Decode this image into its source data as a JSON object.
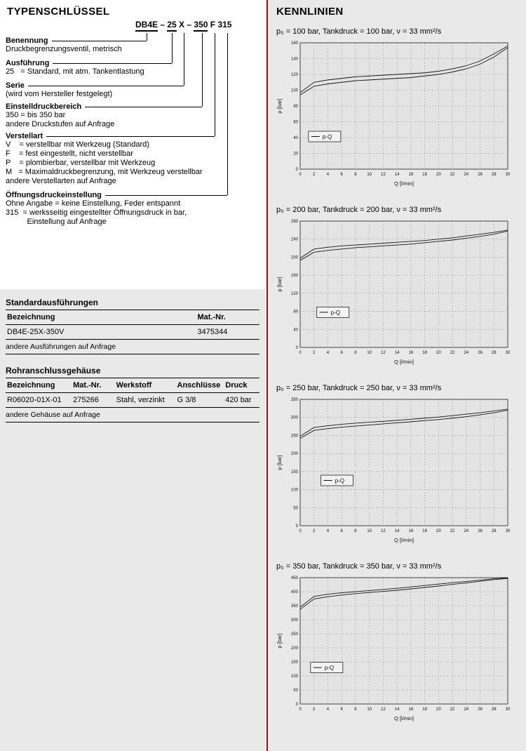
{
  "page": {
    "divider_color": "#8a1717",
    "background": "#e9e9e9"
  },
  "left": {
    "title": "TYPENSCHLÜSSEL",
    "type_key": {
      "code": {
        "tokens": [
          {
            "text": "DB4E",
            "underline": true
          },
          {
            "text": " – ",
            "underline": false
          },
          {
            "text": "25",
            "underline": true
          },
          {
            "text": " X",
            "underline": false
          },
          {
            "text": " – ",
            "underline": false
          },
          {
            "text": "350",
            "underline": true
          },
          {
            "text": " F",
            "underline": false
          },
          {
            "text": " 315",
            "underline": false
          }
        ]
      },
      "sections": [
        {
          "heading": "Benennung",
          "lines": [
            "Druckbegrenzungsventil, metrisch"
          ]
        },
        {
          "heading": "Ausführung",
          "lines": [
            "25   = Standard, mit atm. Tankentlastung"
          ]
        },
        {
          "heading": "Serie",
          "lines": [
            "(wird vom Hersteller festgelegt)"
          ]
        },
        {
          "heading": "Einstelldruckbereich",
          "lines": [
            "350 = bis 350 bar",
            "andere Druckstufen auf Anfrage"
          ]
        },
        {
          "heading": "Verstellart",
          "lines": [
            "V    = verstellbar mit Werkzeug (Standard)",
            "F    = fest eingestellt, nicht verstellbar",
            "P    = plombierbar, verstellbar mit Werkzeug",
            "M   = Maximaldruckbegrenzung, mit Werkzeug verstellbar",
            "andere Verstellarten auf Anfrage"
          ]
        },
        {
          "heading": "Öffnungsdruckeinstellung",
          "lines": [
            "Ohne Angabe = keine Einstellung, Feder entspannt",
            "315  = werksseitig eingestellter Öffnungsdruck in bar,",
            "          Einstellung auf Anfrage"
          ]
        }
      ]
    },
    "tables": [
      {
        "title": "Standardausführungen",
        "headers": [
          "Bezeichnung",
          "Mat.-Nr."
        ],
        "col_widths": [
          "75%",
          "25%"
        ],
        "rows": [
          [
            "DB4E-25X-350V",
            "3475344"
          ]
        ],
        "note": "andere Ausführungen auf Anfrage"
      },
      {
        "title": "Rohranschlussgehäuse",
        "headers": [
          "Bezeichnung",
          "Mat.-Nr.",
          "Werkstoff",
          "Anschlüsse",
          "Druck"
        ],
        "col_widths": [
          "26%",
          "17%",
          "24%",
          "19%",
          "14%"
        ],
        "rows": [
          [
            "R06020-01X-01",
            "275266",
            "Stahl, verzinkt",
            "G 3/8",
            "420 bar"
          ]
        ],
        "note": "andere Gehäuse auf Anfrage"
      }
    ]
  },
  "right": {
    "title": "KENNLINIEN"
  },
  "chart_data": [
    {
      "type": "line",
      "title": "p₀ = 100 bar, Tankdruck = 100 bar, ν = 33 mm²/s",
      "xlabel": "Q [l/min]",
      "ylabel": "p [bar]",
      "xlim": [
        0,
        30
      ],
      "xtick_step": 2,
      "ylim": [
        0,
        160
      ],
      "ytick_step": 20,
      "grid": true,
      "legend": {
        "label": "p-Q",
        "pos": [
          0.04,
          0.7
        ]
      },
      "x": [
        0,
        2,
        4,
        6,
        8,
        10,
        12,
        14,
        16,
        18,
        20,
        22,
        24,
        26,
        28,
        30
      ],
      "series": [
        {
          "name": "p-Q",
          "values": [
            97,
            110,
            113,
            115,
            117,
            118,
            119,
            120,
            121,
            122,
            124,
            127,
            131,
            137,
            146,
            156
          ]
        },
        {
          "name": "p-Q",
          "values": [
            94,
            105,
            108,
            110,
            112,
            113,
            114,
            115,
            116,
            118,
            120,
            123,
            127,
            133,
            142,
            154
          ]
        }
      ]
    },
    {
      "type": "line",
      "title": "p₀ = 200 bar, Tankdruck = 200 bar, ν = 33 mm²/s",
      "xlabel": "Q [l/min]",
      "ylabel": "p [bar]",
      "xlim": [
        0,
        30
      ],
      "xtick_step": 2,
      "ylim": [
        0,
        280
      ],
      "ytick_step": 40,
      "grid": true,
      "legend": {
        "label": "p-Q",
        "pos": [
          0.08,
          0.68
        ]
      },
      "x": [
        0,
        2,
        4,
        6,
        8,
        10,
        12,
        14,
        16,
        18,
        20,
        22,
        24,
        26,
        28,
        30
      ],
      "series": [
        {
          "name": "p-Q",
          "values": [
            198,
            218,
            222,
            225,
            227,
            229,
            231,
            233,
            235,
            237,
            240,
            243,
            247,
            251,
            255,
            260
          ]
        },
        {
          "name": "p-Q",
          "values": [
            193,
            211,
            215,
            218,
            221,
            223,
            225,
            227,
            229,
            232,
            235,
            238,
            242,
            246,
            251,
            258
          ]
        }
      ]
    },
    {
      "type": "line",
      "title": "p₀ = 250 bar, Tankdruck = 250 bar, ν = 33 mm²/s",
      "xlabel": "Q [l/min]",
      "ylabel": "p [bar]",
      "xlim": [
        0,
        30
      ],
      "xtick_step": 2,
      "ylim": [
        0,
        350
      ],
      "ytick_step": 50,
      "grid": true,
      "legend": {
        "label": "p-Q",
        "pos": [
          0.1,
          0.6
        ]
      },
      "x": [
        0,
        2,
        4,
        6,
        8,
        10,
        12,
        14,
        16,
        18,
        20,
        22,
        24,
        26,
        28,
        30
      ],
      "series": [
        {
          "name": "p-Q",
          "values": [
            248,
            272,
            277,
            281,
            284,
            287,
            289,
            292,
            295,
            298,
            301,
            305,
            309,
            313,
            318,
            323
          ]
        },
        {
          "name": "p-Q",
          "values": [
            242,
            264,
            269,
            273,
            276,
            279,
            282,
            285,
            288,
            291,
            294,
            298,
            302,
            307,
            313,
            320
          ]
        }
      ]
    },
    {
      "type": "line",
      "title": "p₀ = 350 bar, Tankdruck = 350 bar, ν = 33 mm²/s",
      "xlabel": "Q [l/min]",
      "ylabel": "p [bar]",
      "xlim": [
        0,
        30
      ],
      "xtick_step": 2,
      "ylim": [
        0,
        450
      ],
      "ytick_step": 50,
      "grid": true,
      "legend": {
        "label": "p-Q",
        "pos": [
          0.05,
          0.67
        ]
      },
      "x": [
        0,
        2,
        4,
        6,
        8,
        10,
        12,
        14,
        16,
        18,
        20,
        22,
        24,
        26,
        28,
        30
      ],
      "series": [
        {
          "name": "p-Q",
          "values": [
            345,
            383,
            391,
            396,
            400,
            404,
            408,
            412,
            417,
            422,
            427,
            432,
            436,
            441,
            446,
            449
          ]
        },
        {
          "name": "p-Q",
          "values": [
            337,
            374,
            382,
            388,
            393,
            397,
            401,
            405,
            410,
            415,
            420,
            426,
            431,
            437,
            443,
            447
          ]
        }
      ]
    }
  ]
}
